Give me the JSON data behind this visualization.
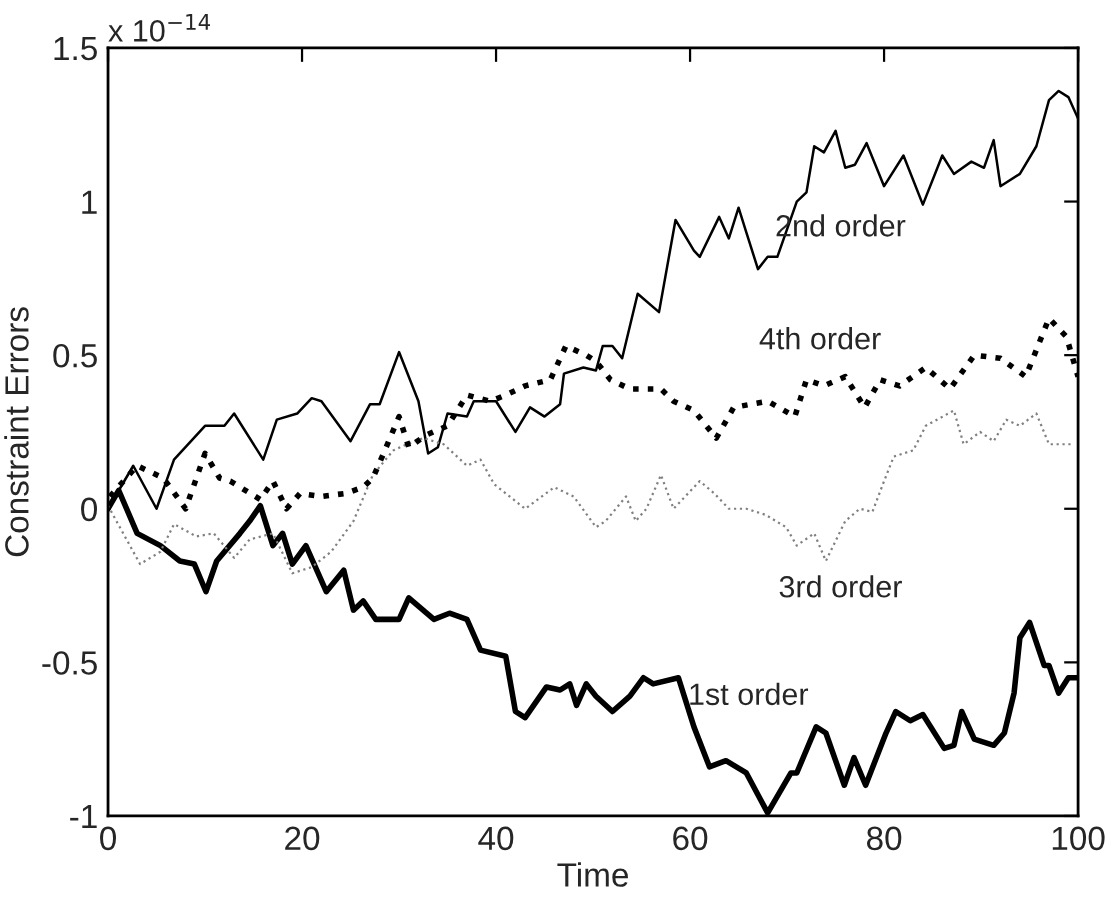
{
  "chart_data": {
    "type": "line",
    "xlabel": "Time",
    "ylabel": "Constraint Errors",
    "xlim": [
      0,
      100
    ],
    "xticks": [
      0,
      20,
      40,
      60,
      80,
      100
    ],
    "ylim": [
      -1,
      1.5
    ],
    "yticks": [
      {
        "value": -1,
        "label": "-1"
      },
      {
        "value": -0.5,
        "label": "-0.5"
      },
      0,
      0.5,
      1,
      1.5
    ],
    "grid": false,
    "legend": false,
    "marker": "none",
    "annotations": [
      "x 10$^{−14}$"
    ],
    "series": [
      {
        "name": "1st order",
        "color": "#000000",
        "line_style": "solid",
        "x": [
          0,
          1.1,
          3,
          5.4,
          7.4,
          8.9,
          10.1,
          11.2,
          13.6,
          14.6,
          15.7,
          17,
          18,
          19,
          20.4,
          22.5,
          24.3,
          25.3,
          26.3,
          27.6,
          30,
          31,
          33.6,
          35.2,
          37,
          38.4,
          41,
          42,
          43,
          45.2,
          46.6,
          47.6,
          48.3,
          49.3,
          50.3,
          52,
          53.8,
          55.2,
          56.2,
          58.8,
          60.4,
          62,
          63.7,
          65.8,
          68,
          70.4,
          71,
          73,
          74,
          75.9,
          76.9,
          78.1,
          80.2,
          81.2,
          82.7,
          84,
          86.2,
          87.2,
          88,
          89.3,
          91.3,
          92.4,
          93.4,
          94,
          95,
          96.5,
          97,
          98,
          99,
          100
        ],
        "values": [
          0.0,
          0.06,
          -0.08,
          -0.12,
          -0.17,
          -0.18,
          -0.27,
          -0.17,
          -0.08,
          -0.04,
          0.01,
          -0.12,
          -0.08,
          -0.18,
          -0.12,
          -0.27,
          -0.2,
          -0.33,
          -0.3,
          -0.36,
          -0.36,
          -0.29,
          -0.36,
          -0.34,
          -0.36,
          -0.46,
          -0.48,
          -0.66,
          -0.68,
          -0.58,
          -0.59,
          -0.57,
          -0.64,
          -0.57,
          -0.61,
          -0.66,
          -0.61,
          -0.55,
          -0.57,
          -0.55,
          -0.71,
          -0.84,
          -0.82,
          -0.86,
          -0.99,
          -0.86,
          -0.86,
          -0.71,
          -0.73,
          -0.9,
          -0.81,
          -0.9,
          -0.73,
          -0.66,
          -0.69,
          -0.67,
          -0.78,
          -0.77,
          -0.66,
          -0.75,
          -0.77,
          -0.73,
          -0.6,
          -0.42,
          -0.37,
          -0.51,
          -0.51,
          -0.6,
          -0.55,
          -0.55
        ]
      },
      {
        "name": "2nd order",
        "color": "#000000",
        "line_style": "solid",
        "x": [
          0,
          2.6,
          5,
          6.8,
          10,
          12,
          13,
          16,
          17.4,
          19.5,
          21,
          22,
          25,
          27,
          28,
          30,
          32,
          33,
          34,
          35,
          37,
          37.7,
          40,
          42,
          43.5,
          45,
          46.6,
          47,
          49,
          50.3,
          51,
          52,
          53,
          54.6,
          56.8,
          58.5,
          60.4,
          61,
          63,
          64,
          65,
          65.8,
          67,
          68,
          69,
          71,
          72,
          72.8,
          73.8,
          75,
          76,
          77,
          78.2,
          80,
          82,
          84,
          86,
          87.2,
          89,
          90.3,
          91.3,
          92,
          94,
          95.7,
          97,
          98,
          99,
          100
        ],
        "values": [
          0.0,
          0.14,
          0.0,
          0.16,
          0.27,
          0.27,
          0.31,
          0.16,
          0.29,
          0.31,
          0.36,
          0.35,
          0.22,
          0.34,
          0.34,
          0.51,
          0.35,
          0.18,
          0.2,
          0.31,
          0.3,
          0.35,
          0.35,
          0.25,
          0.33,
          0.3,
          0.34,
          0.44,
          0.46,
          0.45,
          0.53,
          0.53,
          0.49,
          0.7,
          0.64,
          0.94,
          0.84,
          0.82,
          0.95,
          0.88,
          0.98,
          0.9,
          0.78,
          0.82,
          0.82,
          1.0,
          1.03,
          1.18,
          1.16,
          1.23,
          1.11,
          1.12,
          1.19,
          1.05,
          1.15,
          0.99,
          1.15,
          1.09,
          1.13,
          1.11,
          1.2,
          1.05,
          1.09,
          1.18,
          1.33,
          1.36,
          1.34,
          1.27
        ]
      },
      {
        "name": "3rd order",
        "color": "#808080",
        "line_style": "dotted",
        "x": [
          0,
          3.3,
          5.4,
          6.8,
          9.1,
          10.9,
          13,
          14.6,
          17,
          19,
          21,
          23,
          25.3,
          27.3,
          29.4,
          30.8,
          32.5,
          34.6,
          37,
          38.4,
          39.8,
          43,
          46,
          48,
          50.3,
          51.3,
          53.4,
          54.4,
          55.5,
          57,
          58.3,
          61,
          62.5,
          64,
          65.8,
          67.8,
          69.9,
          71,
          72.8,
          74,
          76,
          77.5,
          78.8,
          80,
          81,
          83,
          84.3,
          87.2,
          88.2,
          89.9,
          91.3,
          92.6,
          94,
          95.7,
          97,
          99.5
        ],
        "values": [
          0.01,
          -0.18,
          -0.14,
          -0.05,
          -0.09,
          -0.08,
          -0.16,
          -0.1,
          -0.08,
          -0.21,
          -0.19,
          -0.14,
          -0.04,
          0.11,
          0.19,
          0.21,
          0.23,
          0.21,
          0.14,
          0.16,
          0.08,
          0.0,
          0.07,
          0.04,
          -0.06,
          -0.04,
          0.04,
          -0.04,
          0.0,
          0.11,
          0.0,
          0.09,
          0.05,
          0.0,
          0.0,
          -0.02,
          -0.06,
          -0.12,
          -0.08,
          -0.17,
          -0.04,
          0.0,
          -0.01,
          0.09,
          0.17,
          0.19,
          0.27,
          0.32,
          0.21,
          0.25,
          0.22,
          0.29,
          0.27,
          0.31,
          0.21,
          0.21
        ]
      },
      {
        "name": "4th order",
        "color": "#000000",
        "line_style": "dotted",
        "x": [
          0.2,
          3,
          5.7,
          8,
          10,
          11.5,
          12.6,
          15.7,
          17,
          18.4,
          19.8,
          22,
          24.5,
          26.3,
          27.3,
          28.4,
          30,
          31,
          32.8,
          35,
          37,
          39.4,
          41,
          43,
          45.6,
          47.2,
          49.3,
          50.3,
          51.8,
          53.8,
          57,
          58.3,
          60.4,
          62.7,
          64.5,
          68,
          70.8,
          72,
          73.8,
          76,
          78,
          79.6,
          81.6,
          84.3,
          86.8,
          89.3,
          92,
          94.6,
          97,
          98.8,
          100
        ],
        "values": [
          0.04,
          0.14,
          0.1,
          0.0,
          0.18,
          0.1,
          0.09,
          0.03,
          0.09,
          0.0,
          0.05,
          0.04,
          0.05,
          0.07,
          0.1,
          0.18,
          0.3,
          0.2,
          0.24,
          0.27,
          0.37,
          0.35,
          0.37,
          0.4,
          0.42,
          0.53,
          0.5,
          0.48,
          0.42,
          0.39,
          0.39,
          0.35,
          0.32,
          0.23,
          0.33,
          0.35,
          0.3,
          0.42,
          0.4,
          0.43,
          0.33,
          0.42,
          0.4,
          0.46,
          0.39,
          0.5,
          0.49,
          0.43,
          0.62,
          0.56,
          0.43
        ]
      }
    ]
  }
}
